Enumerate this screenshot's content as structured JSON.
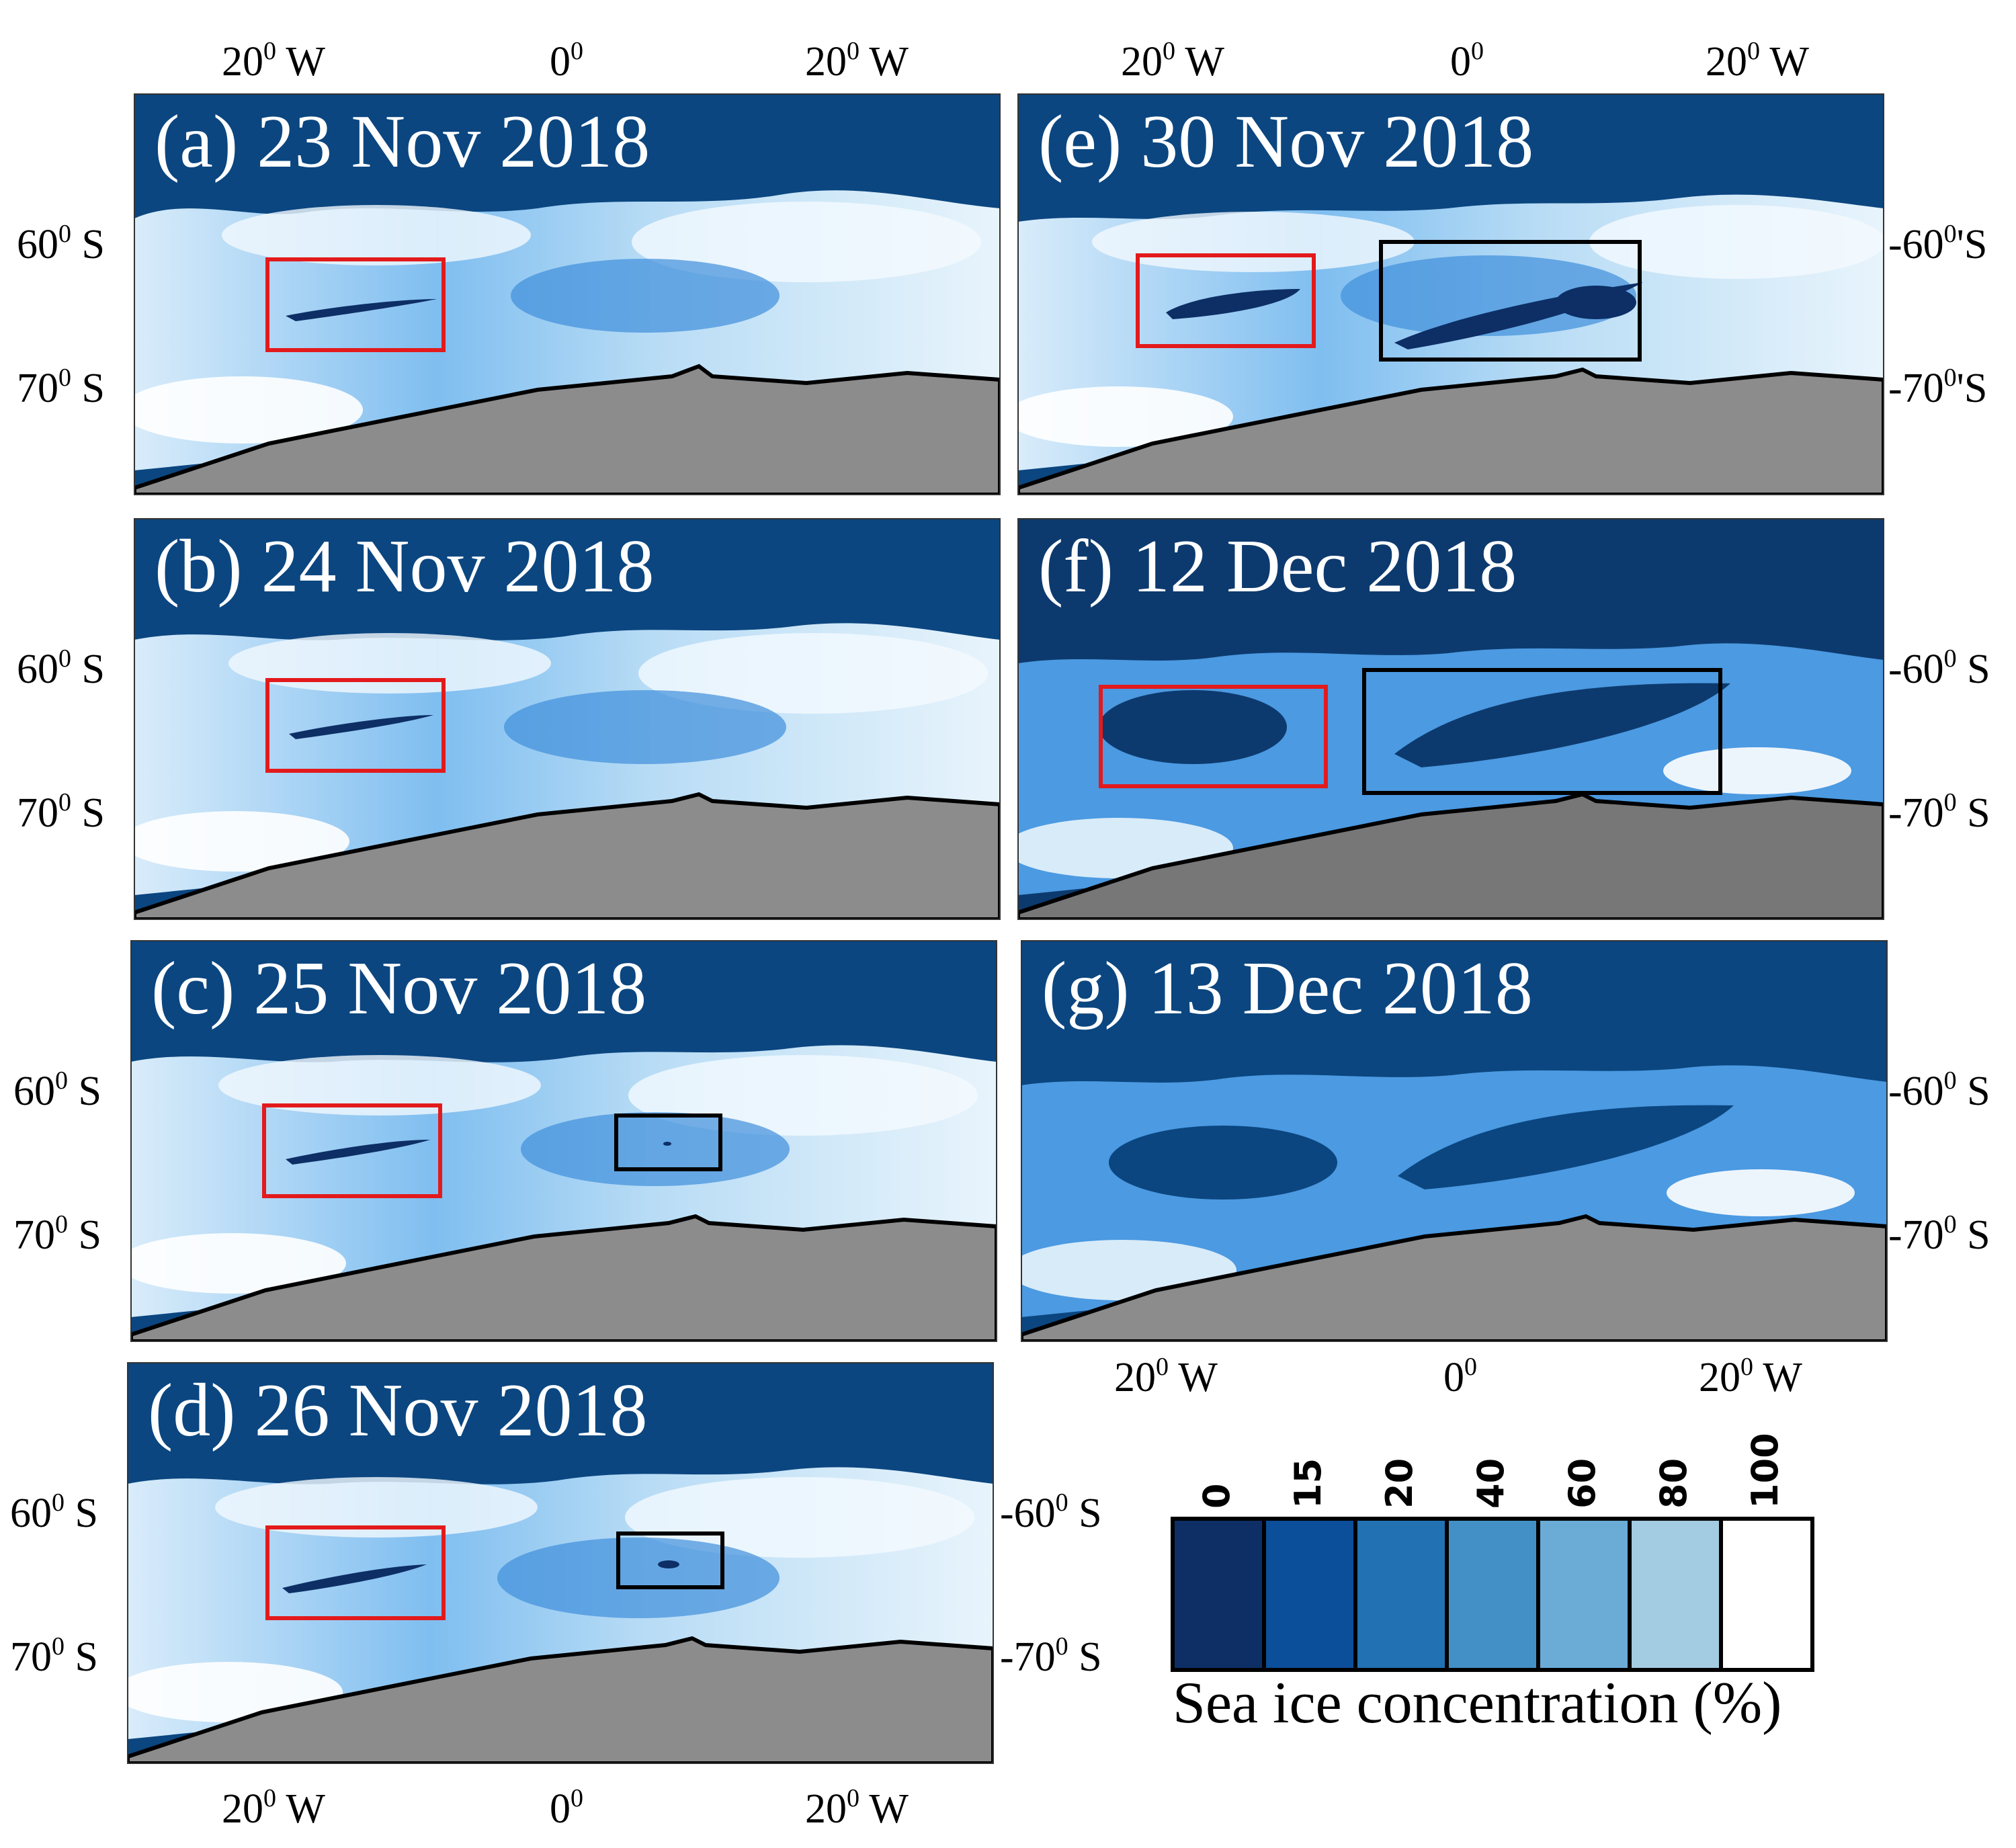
{
  "panels": [
    {
      "id": "a",
      "title": "(a) 23 Nov 2018",
      "red_box": true,
      "black_box": "none"
    },
    {
      "id": "b",
      "title": "(b) 24 Nov 2018",
      "red_box": true,
      "black_box": "none"
    },
    {
      "id": "c",
      "title": "(c) 25 Nov 2018",
      "red_box": true,
      "black_box": "small"
    },
    {
      "id": "d",
      "title": "(d) 26 Nov 2018",
      "red_box": true,
      "black_box": "small"
    },
    {
      "id": "e",
      "title": "(e) 30 Nov 2018",
      "red_box": true,
      "black_box": "large"
    },
    {
      "id": "f",
      "title": "(f) 12 Dec 2018",
      "red_box": true,
      "black_box": "large"
    },
    {
      "id": "g",
      "title": "(g) 13 Dec 2018",
      "red_box": false,
      "black_box": "none"
    }
  ],
  "axes": {
    "lon_labels": [
      "20",
      "W",
      "0",
      "20",
      "W"
    ],
    "lon_left": {
      "num": "20",
      "sup": "0",
      "dir": " W"
    },
    "lon_center": {
      "num": "0",
      "sup": "0"
    },
    "lon_right": {
      "num": "20",
      "sup": "0",
      "dir": " W"
    },
    "lat_60": {
      "num": "60",
      "sup": "0",
      "dir": " S"
    },
    "lat_70": {
      "num": "70",
      "sup": "0",
      "dir": " S"
    },
    "lat_60_right_e": {
      "num": "-60",
      "sup": "0",
      "dir": "'S"
    },
    "lat_70_right_e": {
      "num": "-70",
      "sup": "0",
      "dir": "'S"
    },
    "lat_60_right": {
      "num": "-60",
      "sup": "0",
      "dir": " S"
    },
    "lat_70_right": {
      "num": "-70",
      "sup": "0",
      "dir": " S"
    }
  },
  "colorbar": {
    "ticks": [
      "0",
      "15",
      "20",
      "40",
      "60",
      "80",
      "100"
    ],
    "colors": [
      "#0d2f66",
      "#0b4e9a",
      "#2272b3",
      "#4390c6",
      "#6aacd6",
      "#a3cbe2",
      "#ffffff"
    ],
    "title": "Sea ice concentration (%)"
  },
  "colors": {
    "ocean": "#0b4680",
    "land": "#8c8c8c",
    "box_red": "#e31a1c",
    "box_black": "#000000"
  }
}
